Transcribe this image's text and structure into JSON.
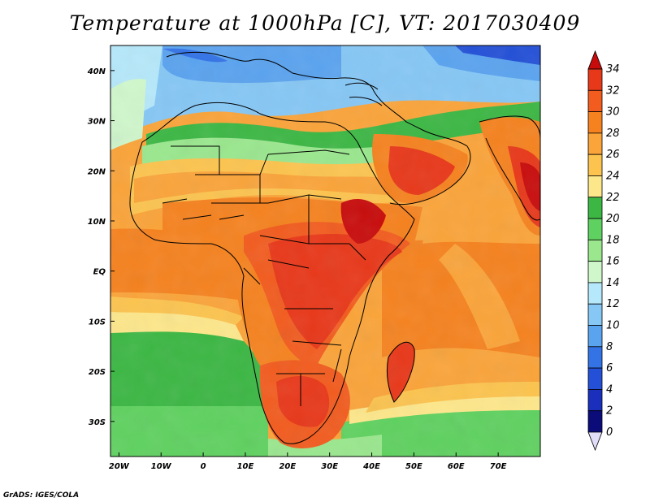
{
  "title": "Temperature at 1000hPa [C], VT: 2017030409",
  "credit": "GrADS: IGES/COLA",
  "map": {
    "lat_labels": [
      "40N",
      "30N",
      "20N",
      "10N",
      "EQ",
      "10S",
      "20S",
      "30S"
    ],
    "lat_values": [
      40,
      30,
      20,
      10,
      0,
      -10,
      -20,
      -30
    ],
    "lon_labels": [
      "20W",
      "10W",
      "0",
      "10E",
      "20E",
      "30E",
      "40E",
      "50E",
      "60E",
      "70E"
    ],
    "lon_values": [
      -20,
      -10,
      0,
      10,
      20,
      30,
      40,
      50,
      60,
      70
    ],
    "lon_range": [
      -22,
      80
    ],
    "lat_range": [
      -37,
      45
    ]
  },
  "colorbar": {
    "labels": [
      "34",
      "32",
      "30",
      "28",
      "26",
      "24",
      "22",
      "20",
      "18",
      "16",
      "14",
      "12",
      "10",
      "8",
      "6",
      "4",
      "2",
      "0"
    ],
    "colors": [
      "#e8381a",
      "#f25c1f",
      "#f5821f",
      "#faa43a",
      "#fcc44f",
      "#fde78b",
      "#3cb744",
      "#5fd160",
      "#9ae78e",
      "#d0f7cc",
      "#b5e8fa",
      "#86c7f5",
      "#5aa3ef",
      "#3473e6",
      "#2350d7",
      "#1a2fbc",
      "#0c0b7a"
    ],
    "top_color": "#c80b0b",
    "bottom_color": "#e1dcf8"
  }
}
